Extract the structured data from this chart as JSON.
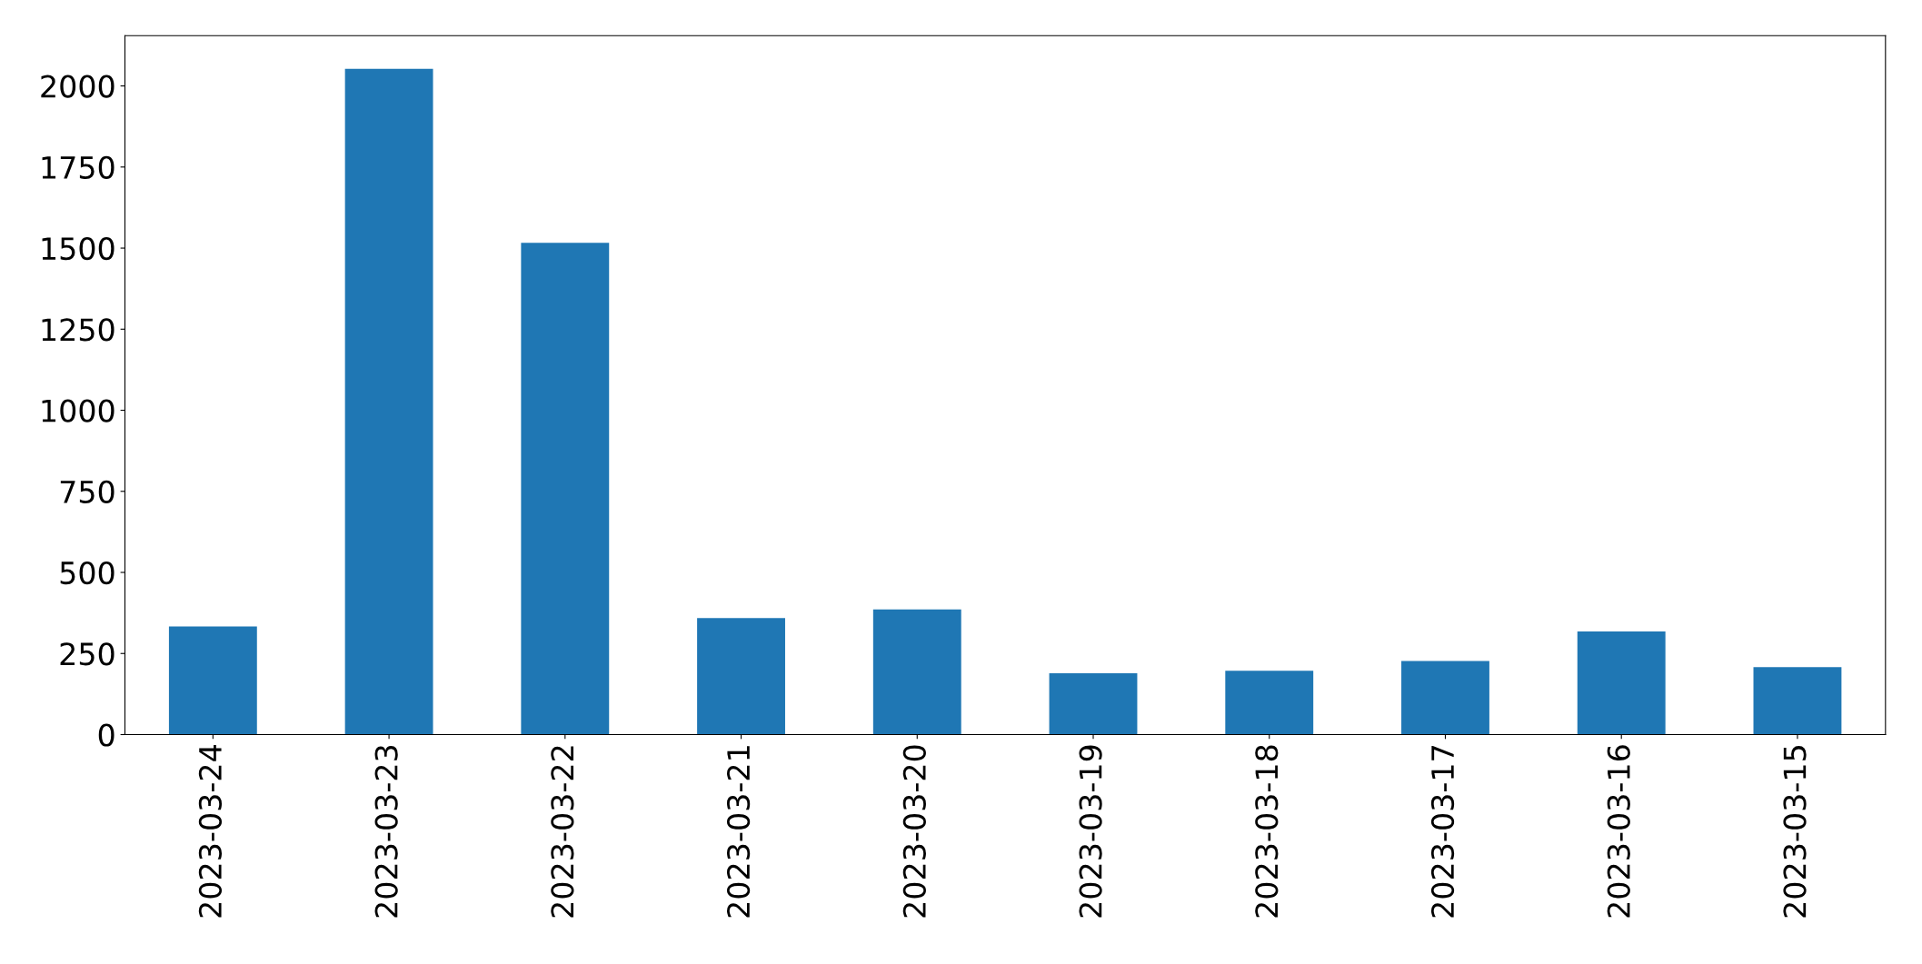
{
  "chart_data": {
    "type": "bar",
    "categories": [
      "2023-03-24",
      "2023-03-23",
      "2023-03-22",
      "2023-03-21",
      "2023-03-20",
      "2023-03-19",
      "2023-03-18",
      "2023-03-17",
      "2023-03-16",
      "2023-03-15"
    ],
    "values": [
      333,
      2053,
      1516,
      359,
      386,
      189,
      197,
      227,
      318,
      208
    ],
    "color": "#1f77b4",
    "ylim": [
      0,
      2155
    ],
    "yticks": [
      0,
      250,
      500,
      750,
      1000,
      1250,
      1500,
      1750,
      2000
    ],
    "grid": false,
    "legend": false
  }
}
